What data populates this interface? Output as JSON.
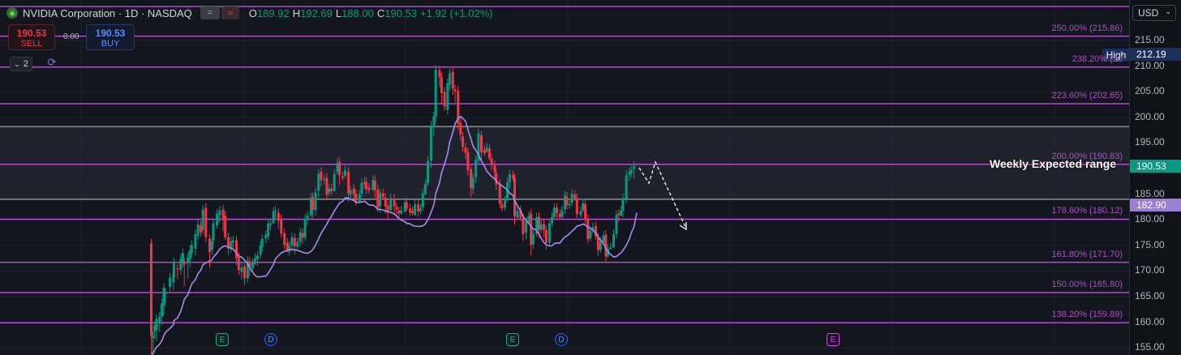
{
  "header": {
    "symbol_title": "NVIDIA Corporation · 1D · NASDAQ",
    "open_key": "O",
    "open": "189.92",
    "high_key": "H",
    "high": "192.69",
    "low_key": "L",
    "low": "188.00",
    "close_key": "C",
    "close": "190.53",
    "change": "+1.92 (+1.02%)",
    "symbol_icon": "nvidia-logo-icon",
    "eq_icon": "equals-icon",
    "wave_icon": "wave-icon"
  },
  "trade": {
    "sell_price": "190.53",
    "sell_label": "SELL",
    "spread": "0.00",
    "buy_price": "190.53",
    "buy_label": "BUY"
  },
  "toolbar": {
    "layers_count": "2",
    "layers_icon": "chevron-down-icon",
    "sync_icon": "sync-icon"
  },
  "currency": {
    "label": "USD",
    "icon": "chevron-down-icon"
  },
  "price_axis": {
    "min": 155,
    "max": 215,
    "ticks": [
      "215.00",
      "210.00",
      "205.00",
      "200.00",
      "195.00",
      "190.00",
      "185.00",
      "180.00",
      "175.00",
      "170.00",
      "165.00",
      "160.00",
      "155.00"
    ]
  },
  "fib_levels": [
    {
      "label": "250.00% (215.86)",
      "price": 215.86
    },
    {
      "label": "238.20% (20",
      "price": 209.8
    },
    {
      "label": "223.60% (202.65)",
      "price": 202.65
    },
    {
      "label": "200.00% (190.83)",
      "price": 190.83
    },
    {
      "label": "178.60% (180.12)",
      "price": 180.12
    },
    {
      "label": "161.80% (171.70)",
      "price": 171.7
    },
    {
      "label": "150.00% (165.80)",
      "price": 165.8
    },
    {
      "label": "138.20% (159.89)",
      "price": 159.89
    }
  ],
  "range_box": {
    "top": 198.2,
    "bottom": 184.0,
    "label": "Weekly Expected range"
  },
  "badges": {
    "high_tag": "High",
    "high_value": "212.19",
    "last_value": "190.53",
    "ma_value": "182.90"
  },
  "events": [
    {
      "type": "E",
      "class": "e"
    },
    {
      "type": "D",
      "class": "d"
    },
    {
      "type": "E",
      "class": "e"
    },
    {
      "type": "D",
      "class": "d"
    },
    {
      "type": "E",
      "class": "e2"
    }
  ],
  "colors": {
    "up": "#089981",
    "down": "#f23645",
    "fib": "#b04ec7",
    "ma": "#a98be8",
    "axis_text": "#b2b5be"
  },
  "candles": [
    [
      186.5,
      175.4,
      157.4,
      150.8
    ],
    [
      188.5,
      156.9,
      157.3,
      151.7
    ],
    [
      190.6,
      158.3,
      159.3,
      156.8
    ],
    [
      193.0,
      158.4,
      160.7,
      156.3
    ],
    [
      196.7,
      159.8,
      161.1,
      158.1
    ],
    [
      199.6,
      161.1,
      163.7,
      159.5
    ],
    [
      202.0,
      163.2,
      166.7,
      161.4
    ],
    [
      203.9,
      165.4,
      165.8,
      163.5
    ],
    [
      209.5,
      166.9,
      168.7,
      165.6
    ],
    [
      213.9,
      167.8,
      169.5,
      166.2
    ],
    [
      214.4,
      168.7,
      171.7,
      167.9
    ],
    [
      218.8,
      170.5,
      170.3,
      168.4
    ],
    [
      222.8,
      170.2,
      172.3,
      169.3
    ],
    [
      225.4,
      171.8,
      173.5,
      170.7
    ],
    [
      227.2,
      171.7,
      171.3,
      167.0
    ],
    [
      231.7,
      171.8,
      172.7,
      168.5
    ],
    [
      234.2,
      172.3,
      174.0,
      170.8
    ],
    [
      236.3,
      173.5,
      175.1,
      172.6
    ],
    [
      240.9,
      174.4,
      177.2,
      173.0
    ],
    [
      244.1,
      176.9,
      179.1,
      176.0
    ],
    [
      247.5,
      178.9,
      177.5,
      176.7
    ],
    [
      250.2,
      178.0,
      182.0,
      177.1
    ],
    [
      253.8,
      182.4,
      176.6,
      175.6
    ],
    [
      258.5,
      176.3,
      173.7,
      170.7
    ],
    [
      261.4,
      174.1,
      175.8,
      173.1
    ],
    [
      263.0,
      176.0,
      179.3,
      175.5
    ],
    [
      267.6,
      178.9,
      181.2,
      178.3
    ],
    [
      270.8,
      180.9,
      181.8,
      179.5
    ],
    [
      275.1,
      182.0,
      180.3,
      177.8
    ],
    [
      277.7,
      180.8,
      176.6,
      176.1
    ],
    [
      281.5,
      176.6,
      174.4,
      173.2
    ],
    [
      284.8,
      174.4,
      175.8,
      173.6
    ],
    [
      287.4,
      175.6,
      176.0,
      174.2
    ],
    [
      291.5,
      176.0,
      172.5,
      171.1
    ],
    [
      294.3,
      172.7,
      170.2,
      169.2
    ],
    [
      297.9,
      169.8,
      170.7,
      168.3
    ],
    [
      301.5,
      170.9,
      168.6,
      167.3
    ],
    [
      305.3,
      168.6,
      172.0,
      167.7
    ],
    [
      307.8,
      171.9,
      170.8,
      168.9
    ],
    [
      311.4,
      170.5,
      171.6,
      169.7
    ],
    [
      314.4,
      171.3,
      172.5,
      171.4
    ],
    [
      317.4,
      172.3,
      173.0,
      171.0
    ],
    [
      321.1,
      173.1,
      175.0,
      172.4
    ],
    [
      323.3,
      174.7,
      176.3,
      173.7
    ],
    [
      327.8,
      176.4,
      177.1,
      175.4
    ],
    [
      330.7,
      176.8,
      179.3,
      176.0
    ],
    [
      333.6,
      179.1,
      179.3,
      178.0
    ],
    [
      337.1,
      179.3,
      181.6,
      179.2
    ],
    [
      339.5,
      181.7,
      181.8,
      180.3
    ],
    [
      343.2,
      181.4,
      179.8,
      178.2
    ],
    [
      346.8,
      180.1,
      177.3,
      176.6
    ],
    [
      350.7,
      177.4,
      175.1,
      174.3
    ],
    [
      354.2,
      175.5,
      174.0,
      173.7
    ],
    [
      356.6,
      173.8,
      174.9,
      173.0
    ],
    [
      359.9,
      175.0,
      176.6,
      173.8
    ],
    [
      363.3,
      176.5,
      174.8,
      173.2
    ],
    [
      366.8,
      174.7,
      175.7,
      174.2
    ],
    [
      370.2,
      175.7,
      177.6,
      174.8
    ],
    [
      373.0,
      177.4,
      176.6,
      175.4
    ],
    [
      376.1,
      176.5,
      180.2,
      175.9
    ],
    [
      379.1,
      180.0,
      180.8,
      179.0
    ],
    [
      383.4,
      180.9,
      184.3,
      180.3
    ],
    [
      385.6,
      184.4,
      181.9,
      180.3
    ],
    [
      389.0,
      181.9,
      185.3,
      180.7
    ],
    [
      392.8,
      185.7,
      189.0,
      184.4
    ],
    [
      395.9,
      189.4,
      187.7,
      186.5
    ],
    [
      399.6,
      188.0,
      188.0,
      186.8
    ],
    [
      402.9,
      188.2,
      184.9,
      183.8
    ],
    [
      405.7,
      185.3,
      186.1,
      184.6
    ],
    [
      408.7,
      186.1,
      185.6,
      184.9
    ],
    [
      412.2,
      185.6,
      188.9,
      185.6
    ],
    [
      416.0,
      189.3,
      191.1,
      188.7
    ],
    [
      418.6,
      191.3,
      188.7,
      186.9
    ],
    [
      422.6,
      188.5,
      188.2,
      187.7
    ],
    [
      425.5,
      188.6,
      189.7,
      188.2
    ],
    [
      429.6,
      189.4,
      185.2,
      183.6
    ],
    [
      432.1,
      184.9,
      185.8,
      184.1
    ],
    [
      436.2,
      186.1,
      185.0,
      184.1
    ],
    [
      438.8,
      185.1,
      183.6,
      182.9
    ],
    [
      443.3,
      183.6,
      184.9,
      183.4
    ],
    [
      446.0,
      185.1,
      187.2,
      184.4
    ],
    [
      449.7,
      187.4,
      186.9,
      186.1
    ],
    [
      451.6,
      187.4,
      186.0,
      185.1
    ],
    [
      455.0,
      186.3,
      185.8,
      185.2
    ],
    [
      459.9,
      185.8,
      187.8,
      185.6
    ],
    [
      462.3,
      187.7,
      185.8,
      184.3
    ],
    [
      465.8,
      185.9,
      182.4,
      181.5
    ],
    [
      468.6,
      182.7,
      185.2,
      181.3
    ],
    [
      472.2,
      185.2,
      184.4,
      183.9
    ],
    [
      475.2,
      184.3,
      182.6,
      181.2
    ],
    [
      478.1,
      182.8,
      181.5,
      179.9
    ],
    [
      481.6,
      181.9,
      184.2,
      181.4
    ],
    [
      486.1,
      184.1,
      182.6,
      181.2
    ],
    [
      489.0,
      182.5,
      182.0,
      180.5
    ],
    [
      491.8,
      181.8,
      181.3,
      180.1
    ],
    [
      494.6,
      181.2,
      181.8,
      181.0
    ],
    [
      499.3,
      181.6,
      183.4,
      181.5
    ],
    [
      501.3,
      183.4,
      182.2,
      181.7
    ],
    [
      505.6,
      182.2,
      181.4,
      180.7
    ],
    [
      508.5,
      181.7,
      181.3,
      180.8
    ],
    [
      511.6,
      181.0,
      183.0,
      180.8
    ],
    [
      515.7,
      183.0,
      181.6,
      180.6
    ],
    [
      518.4,
      181.7,
      182.2,
      181.1
    ],
    [
      521.3,
      182.4,
      185.2,
      181.7
    ],
    [
      524.4,
      185.0,
      187.0,
      184.9
    ],
    [
      527.5,
      187.1,
      191.5,
      186.6
    ],
    [
      531.4,
      191.5,
      198.4,
      190.1
    ],
    [
      534.9,
      198.4,
      200.2,
      196.3
    ],
    [
      537.2,
      200.2,
      209.3,
      198.8
    ],
    [
      541.9,
      209.2,
      207.9,
      205.9
    ],
    [
      544.4,
      207.9,
      204.7,
      202.6
    ],
    [
      548.1,
      205.0,
      202.1,
      201.3
    ],
    [
      551.8,
      201.5,
      206.7,
      200.6
    ],
    [
      554.4,
      206.4,
      208.6,
      205.2
    ],
    [
      558.3,
      208.9,
      205.6,
      204.4
    ],
    [
      561.1,
      205.5,
      205.1,
      202.9
    ],
    [
      564.8,
      205.2,
      198.8,
      197.6
    ],
    [
      567.8,
      199.0,
      196.7,
      195.5
    ],
    [
      570.5,
      196.3,
      194.3,
      193.3
    ],
    [
      574.0,
      194.1,
      193.1,
      191.9
    ],
    [
      576.9,
      193.2,
      189.7,
      188.6
    ],
    [
      580.6,
      189.9,
      186.2,
      184.4
    ],
    [
      583.1,
      186.0,
      188.2,
      185.1
    ],
    [
      586.7,
      188.3,
      191.7,
      187.2
    ],
    [
      589.9,
      191.5,
      196.9,
      190.7
    ],
    [
      593.5,
      196.5,
      193.2,
      191.7
    ],
    [
      597.4,
      193.7,
      193.0,
      192.5
    ],
    [
      600.2,
      193.3,
      194.1,
      193.1
    ],
    [
      603.4,
      193.9,
      192.0,
      191.6
    ],
    [
      606.1,
      192.0,
      190.8,
      189.7
    ],
    [
      609.9,
      190.6,
      189.3,
      188.2
    ],
    [
      611.8,
      189.1,
      186.9,
      185.8
    ],
    [
      616.3,
      187.0,
      183.1,
      182.4
    ],
    [
      619.0,
      183.0,
      182.2,
      181.6
    ],
    [
      622.5,
      182.4,
      183.7,
      181.8
    ],
    [
      625.5,
      183.8,
      187.3,
      183.7
    ],
    [
      628.4,
      187.3,
      188.9,
      186.1
    ],
    [
      632.5,
      188.7,
      188.2,
      187.6
    ],
    [
      634.5,
      188.2,
      180.7,
      179.0
    ],
    [
      637.9,
      180.4,
      181.7,
      180.5
    ],
    [
      641.8,
      181.9,
      180.4,
      179.8
    ],
    [
      644.9,
      180.3,
      177.2,
      175.9
    ],
    [
      648.6,
      177.5,
      179.6,
      176.2
    ],
    [
      652.0,
      179.5,
      180.8,
      179.8
    ],
    [
      654.7,
      181.2,
      175.1,
      173.0
    ],
    [
      657.3,
      175.3,
      177.3,
      174.3
    ],
    [
      661.6,
      177.3,
      180.5,
      176.7
    ],
    [
      664.5,
      180.6,
      178.1,
      176.4
    ],
    [
      667.3,
      178.0,
      179.1,
      177.3
    ],
    [
      670.6,
      179.2,
      178.0,
      176.6
    ],
    [
      673.4,
      178.0,
      175.5,
      174.2
    ],
    [
      677.4,
      175.5,
      179.3,
      175.1
    ],
    [
      680.5,
      179.3,
      180.5,
      178.8
    ],
    [
      683.3,
      180.5,
      182.4,
      180.0
    ],
    [
      686.5,
      182.4,
      181.3,
      180.4
    ],
    [
      690.2,
      181.2,
      180.6,
      180.1
    ],
    [
      693.0,
      180.5,
      181.9,
      180.3
    ],
    [
      696.5,
      182.0,
      184.7,
      181.2
    ],
    [
      698.9,
      184.5,
      182.9,
      182.1
    ],
    [
      702.0,
      183.1,
      183.1,
      182.1
    ],
    [
      705.1,
      183.3,
      185.1,
      182.7
    ],
    [
      708.8,
      184.9,
      184.2,
      183.7
    ],
    [
      711.3,
      184.2,
      181.1,
      180.3
    ],
    [
      715.9,
      180.9,
      181.7,
      180.4
    ],
    [
      718.7,
      181.8,
      183.2,
      181.5
    ],
    [
      721.6,
      183.1,
      180.0,
      179.3
    ],
    [
      724.8,
      180.1,
      176.2,
      175.5
    ],
    [
      727.8,
      176.4,
      177.9,
      175.8
    ],
    [
      730.8,
      178.0,
      178.6,
      177.3
    ],
    [
      734.6,
      178.8,
      176.7,
      176.1
    ],
    [
      737.4,
      176.6,
      174.1,
      172.9
    ],
    [
      740.4,
      174.1,
      175.7,
      173.6
    ],
    [
      744.0,
      175.7,
      176.9,
      175.0
    ],
    [
      746.9,
      177.1,
      172.8,
      171.8
    ],
    [
      749.4,
      172.9,
      174.4,
      172.5
    ],
    [
      752.7,
      174.3,
      174.6,
      174.3
    ],
    [
      756.5,
      174.6,
      177.2,
      174.6
    ],
    [
      760.0,
      177.2,
      181.0,
      176.5
    ],
    [
      762.9,
      181.2,
      180.9,
      179.6
    ],
    [
      765.6,
      180.8,
      181.8,
      180.7
    ],
    [
      768.0,
      181.8,
      184.2,
      180.5
    ],
    [
      772.2,
      184.1,
      188.7,
      183.3
    ],
    [
      776.0,
      188.8,
      189.3,
      187.6
    ],
    [
      778.2,
      189.1,
      189.7,
      188.3
    ],
    [
      781.6,
      189.9,
      190.5,
      188.0
    ]
  ]
}
